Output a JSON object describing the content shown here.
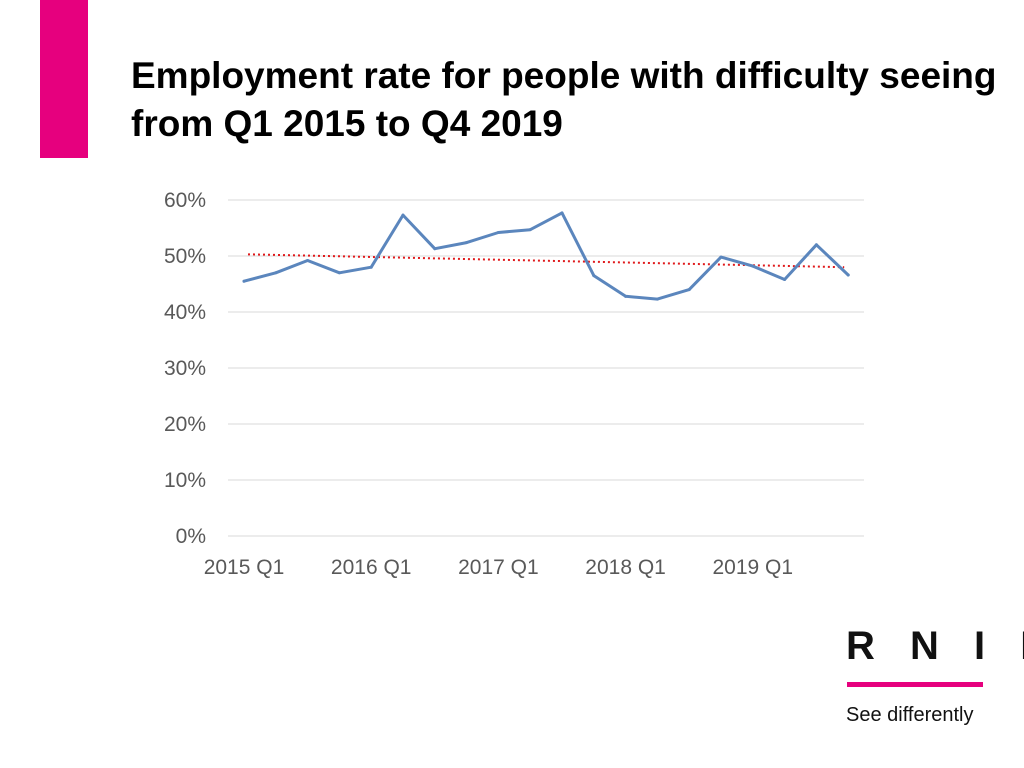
{
  "slide": {
    "title": "Employment rate for people with difficulty seeing from Q1 2015 to Q4 2019"
  },
  "logo": {
    "wordmark": "R N I B",
    "tagline": "See differently"
  },
  "colors": {
    "accent": "#e6007e",
    "series_line": "#5b86bd",
    "trend_line": "#e0191b",
    "gridline": "#d9d9d9",
    "axis_text": "#595959"
  },
  "chart_data": {
    "type": "line",
    "title": "Employment rate for people with difficulty seeing from Q1 2015 to Q4 2019",
    "xlabel": "",
    "ylabel": "",
    "categories": [
      "2015 Q1",
      "2015 Q2",
      "2015 Q3",
      "2015 Q4",
      "2016 Q1",
      "2016 Q2",
      "2016 Q3",
      "2016 Q4",
      "2017 Q1",
      "2017 Q2",
      "2017 Q3",
      "2017 Q4",
      "2018 Q1",
      "2018 Q2",
      "2018 Q3",
      "2018 Q4",
      "2019 Q1",
      "2019 Q2",
      "2019 Q3",
      "2019 Q4"
    ],
    "x_tick_labels": [
      "2015 Q1",
      "2016 Q1",
      "2017 Q1",
      "2018 Q1",
      "2019 Q1"
    ],
    "y_tick_labels": [
      "0%",
      "10%",
      "20%",
      "30%",
      "40%",
      "50%",
      "60%"
    ],
    "ylim": [
      0,
      60
    ],
    "y_tick_step": 10,
    "grid": true,
    "series": [
      {
        "name": "Employment rate",
        "values": [
          45.5,
          47.0,
          49.2,
          47.0,
          48.0,
          57.3,
          51.3,
          52.4,
          54.2,
          54.7,
          57.7,
          46.5,
          42.8,
          42.3,
          44.0,
          49.8,
          48.2,
          45.8,
          52.0,
          46.6
        ]
      }
    ],
    "trendline": {
      "name": "Linear trend",
      "style": "dotted",
      "start": 50.3,
      "end": 48.0
    }
  }
}
